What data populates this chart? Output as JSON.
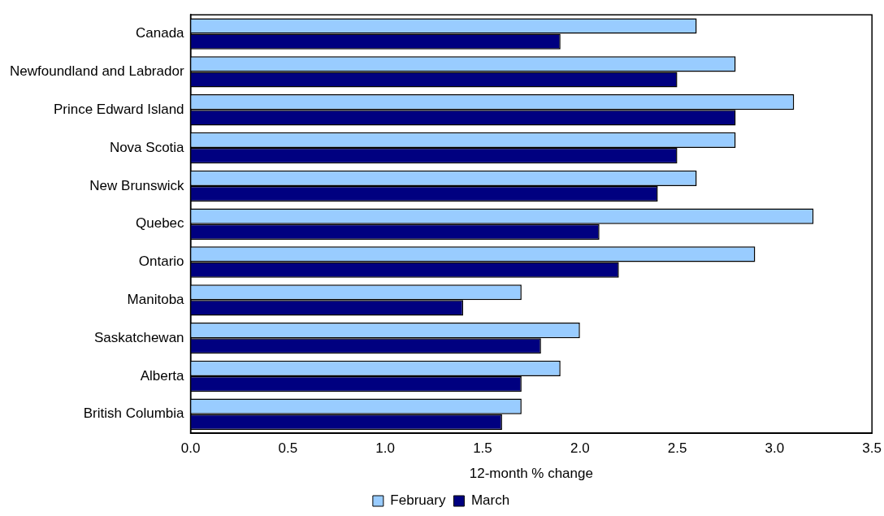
{
  "chart_data": {
    "type": "bar",
    "orientation": "horizontal",
    "xlabel": "12-month % change",
    "categories": [
      "Canada",
      "Newfoundland and Labrador",
      "Prince Edward Island",
      "Nova Scotia",
      "New Brunswick",
      "Quebec",
      "Ontario",
      "Manitoba",
      "Saskatchewan",
      "Alberta",
      "British Columbia"
    ],
    "series": [
      {
        "name": "February",
        "color": "#99ccff",
        "values": [
          2.6,
          2.8,
          3.1,
          2.8,
          2.6,
          3.2,
          2.9,
          1.7,
          2.0,
          1.9,
          1.7
        ]
      },
      {
        "name": "March",
        "color": "#000080",
        "values": [
          1.9,
          2.5,
          2.8,
          2.5,
          2.4,
          2.1,
          2.2,
          1.4,
          1.8,
          1.7,
          1.6
        ]
      }
    ],
    "xlim": [
      0,
      3.5
    ],
    "xticks": [
      {
        "value": 0,
        "label": "0.0"
      },
      0.5,
      {
        "value": 1,
        "label": "1.0"
      },
      1.5,
      {
        "value": 2,
        "label": "2.0"
      },
      2.5,
      {
        "value": 3,
        "label": "3.0"
      },
      3.5
    ],
    "grid": false,
    "legend": "bottom"
  }
}
